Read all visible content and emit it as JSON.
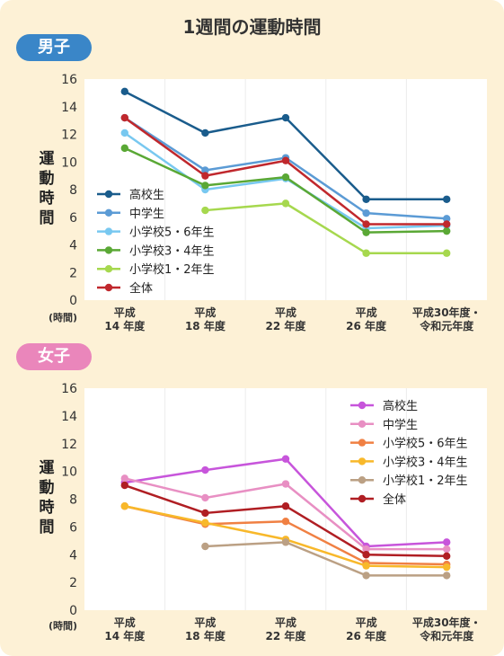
{
  "title": "1週間の運動時間",
  "chart_data": [
    {
      "type": "line",
      "panel_label": "男子",
      "ylabel_chars": [
        "運",
        "動",
        "時",
        "間"
      ],
      "unit_label": "(時間)",
      "categories": [
        [
          "平成",
          "14 年度"
        ],
        [
          "平成",
          "18 年度"
        ],
        [
          "平成",
          "22 年度"
        ],
        [
          "平成",
          "26 年度"
        ],
        [
          "平成30年度・",
          "令和元年度"
        ]
      ],
      "yticks": [
        "0",
        "2",
        "4",
        "6",
        "8",
        "10",
        "12",
        "14",
        "16"
      ],
      "ylim": [
        0,
        16
      ],
      "legend_position": "bottom-left",
      "series": [
        {
          "name": "高校生",
          "color": "#1a5c8c",
          "values": [
            15.1,
            12.1,
            13.2,
            7.3,
            7.3
          ]
        },
        {
          "name": "中学生",
          "color": "#5b9bd5",
          "values": [
            13.2,
            9.4,
            10.3,
            6.3,
            5.9
          ]
        },
        {
          "name": "小学校5・6年生",
          "color": "#78c8f0",
          "values": [
            12.1,
            8.0,
            8.8,
            5.2,
            5.4
          ]
        },
        {
          "name": "小学校3・4年生",
          "color": "#5aa835",
          "values": [
            11.0,
            8.3,
            8.9,
            4.9,
            5.0
          ]
        },
        {
          "name": "小学校1・2年生",
          "color": "#a6d84e",
          "values": [
            null,
            6.5,
            7.0,
            3.4,
            3.4
          ]
        },
        {
          "name": "全体",
          "color": "#c0282d",
          "values": [
            13.2,
            9.0,
            10.1,
            5.5,
            5.5
          ]
        }
      ]
    },
    {
      "type": "line",
      "panel_label": "女子",
      "ylabel_chars": [
        "運",
        "動",
        "時",
        "間"
      ],
      "unit_label": "(時間)",
      "categories": [
        [
          "平成",
          "14 年度"
        ],
        [
          "平成",
          "18 年度"
        ],
        [
          "平成",
          "22 年度"
        ],
        [
          "平成",
          "26 年度"
        ],
        [
          "平成30年度・",
          "令和元年度"
        ]
      ],
      "yticks": [
        "0",
        "2",
        "4",
        "6",
        "8",
        "10",
        "12",
        "14",
        "16"
      ],
      "ylim": [
        0,
        16
      ],
      "legend_position": "top-right",
      "series": [
        {
          "name": "高校生",
          "color": "#c755db",
          "values": [
            9.2,
            10.1,
            10.9,
            4.6,
            4.9
          ]
        },
        {
          "name": "中学生",
          "color": "#e88fc3",
          "values": [
            9.5,
            8.1,
            9.1,
            4.4,
            4.4
          ]
        },
        {
          "name": "小学校5・6年生",
          "color": "#f08043",
          "values": [
            7.5,
            6.2,
            6.4,
            3.4,
            3.3
          ]
        },
        {
          "name": "小学校3・4年生",
          "color": "#f8b82a",
          "values": [
            7.5,
            6.3,
            5.1,
            3.2,
            3.1
          ]
        },
        {
          "name": "小学校1・2年生",
          "color": "#bba084",
          "values": [
            null,
            4.6,
            4.9,
            2.5,
            2.5
          ]
        },
        {
          "name": "全体",
          "color": "#b01e23",
          "values": [
            9.0,
            7.0,
            7.5,
            4.0,
            3.9
          ]
        }
      ]
    }
  ]
}
